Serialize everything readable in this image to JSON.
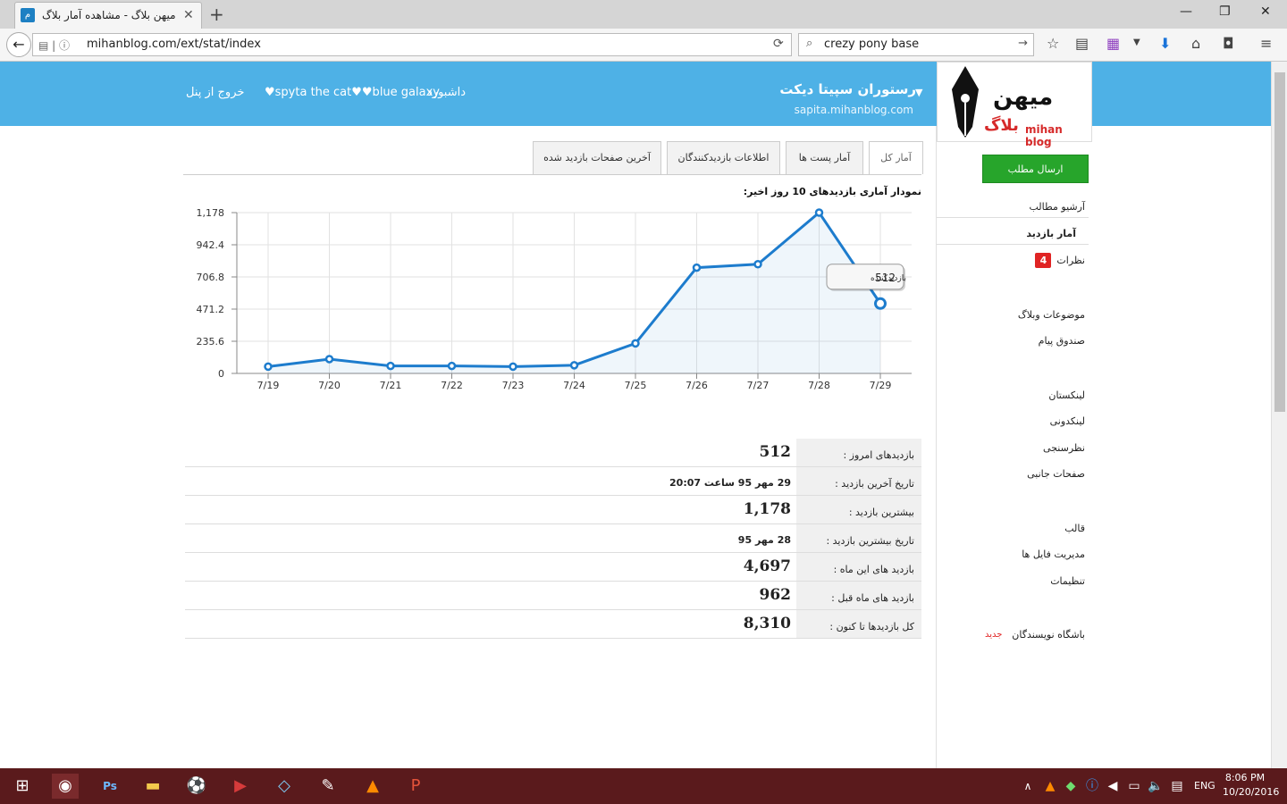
{
  "browser": {
    "tab_title": "میهن بلاگ - مشاهده آمار بلاگ",
    "url": "mihanblog.com/ext/stat/index",
    "search": "crezy pony base"
  },
  "header": {
    "blog_title": "رستوران سپیتا دیکت",
    "blog_url": "sapita.mihanblog.com",
    "nav": {
      "dashboard": "داشبورد",
      "user1": "♥spyta the cat♥",
      "user2": "♥blue galaxy",
      "logout": "خروج از پنل"
    },
    "logo": {
      "main": "میهن",
      "sub": "بلاگ",
      "en": "mihan blog"
    }
  },
  "sidebar": {
    "send_post": "ارسال مطلب",
    "items": [
      "آرشیو مطالب",
      "آمار بازدید",
      "نظرات",
      "موضوعات وبلاگ",
      "صندوق پیام",
      "لینکستان",
      "لینکدونی",
      "نظرسنجی",
      "صفحات جانبی",
      "قالب",
      "مدیریت فایل ها",
      "تنظیمات",
      "باشگاه نویسندگان"
    ],
    "comments_badge": "4",
    "new_label": "جدید"
  },
  "tabs": [
    "آمار کل",
    "آمار پست ها",
    "اطلاعات بازدیدکنندگان",
    "آخرین صفحات بازدید شده"
  ],
  "chart_title": "نمودار آماری بازدیدهای 10 روز اخیر:",
  "tooltip": {
    "value": "512",
    "label": "بازدیدکننده"
  },
  "chart_data": {
    "type": "area",
    "x": [
      "7/19",
      "7/20",
      "7/21",
      "7/22",
      "7/23",
      "7/24",
      "7/25",
      "7/26",
      "7/27",
      "7/28",
      "7/29"
    ],
    "values": [
      50,
      105,
      55,
      55,
      50,
      60,
      220,
      775,
      800,
      1178,
      512
    ],
    "ylim": [
      0,
      1178
    ],
    "yticks": [
      "0",
      "235.6",
      "471.2",
      "706.8",
      "942.4",
      "1,178"
    ],
    "grid": true,
    "color": "#1d7ccd"
  },
  "stats": [
    {
      "label": "بازدیدهای امروز :",
      "value": "512"
    },
    {
      "label": "تاریخ آخرین بازدید :",
      "value": "29 مهر 95 ساعت 20:07"
    },
    {
      "label": "بیشترین بازدید :",
      "value": "1,178"
    },
    {
      "label": "تاریخ بیشترین بازدید :",
      "value": "28 مهر 95"
    },
    {
      "label": "بازدید های این ماه :",
      "value": "4,697"
    },
    {
      "label": "بازدید های ماه قبل :",
      "value": "962"
    },
    {
      "label": "کل بازدیدها تا کنون :",
      "value": "8,310"
    }
  ],
  "taskbar": {
    "lang": "ENG",
    "time": "8:06 PM",
    "date": "10/20/2016"
  }
}
